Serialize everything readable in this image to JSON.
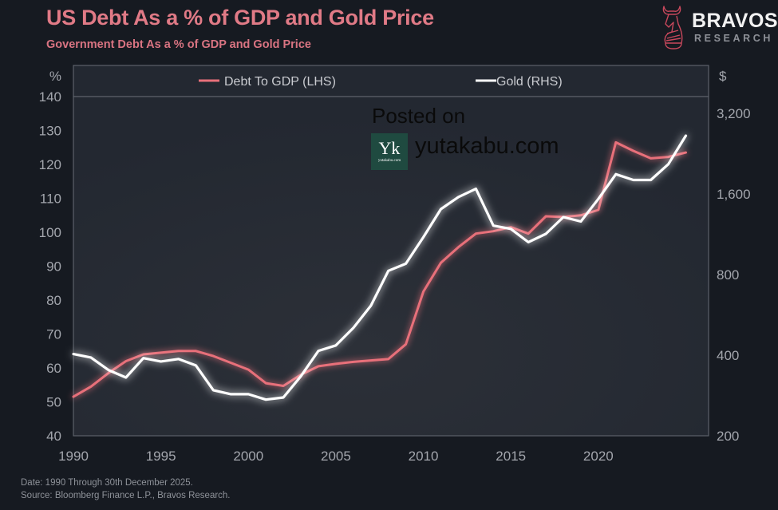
{
  "header": {
    "title": "US Debt As a % of GDP and Gold Price",
    "subtitle": "Government Debt As a % of GDP  and Gold Price"
  },
  "brand": {
    "name": "BRAVOS",
    "sub": "RESEARCH",
    "icon": "knight-bull-icon",
    "color": "#c8485c"
  },
  "watermark": {
    "posted": "Posted on",
    "site": "yutakabu.com",
    "badge_letter": "Yk",
    "badge_text": "yutakabu.com"
  },
  "footer": {
    "date_note": "Date: 1990 Through 30th December 2025.",
    "source": "Source: Bloomberg Finance L.P., Bravos Research."
  },
  "chart_data": {
    "type": "line",
    "title": "US Debt As a % of GDP and Gold Price",
    "subtitle": "Government Debt As a % of GDP  and Gold Price",
    "xlabel": "",
    "x": [
      1990,
      1991,
      1992,
      1993,
      1994,
      1995,
      1996,
      1997,
      1998,
      1999,
      2000,
      2001,
      2002,
      2003,
      2004,
      2005,
      2006,
      2007,
      2008,
      2009,
      2010,
      2011,
      2012,
      2013,
      2014,
      2015,
      2016,
      2017,
      2018,
      2019,
      2020,
      2021,
      2022,
      2023,
      2024,
      2025
    ],
    "xticks": [
      "1990",
      "1995",
      "2000",
      "2005",
      "2010",
      "2015",
      "2020"
    ],
    "xlim": [
      1990,
      2026.3
    ],
    "legend_position": "top-center",
    "grid": false,
    "y_left": {
      "label": "%",
      "lim": [
        40,
        140
      ],
      "ticks": [
        "140",
        "130",
        "120",
        "110",
        "100",
        "90",
        "80",
        "70",
        "60",
        "50",
        "40"
      ],
      "tick_values": [
        140,
        130,
        120,
        110,
        100,
        90,
        80,
        70,
        60,
        50,
        40
      ]
    },
    "y_right": {
      "label": "$",
      "scale": "log",
      "lim": [
        200,
        3500
      ],
      "ticks": [
        "3,200",
        "1,600",
        "800",
        "400",
        "200"
      ],
      "tick_values": [
        3200,
        1600,
        800,
        400,
        200
      ]
    },
    "series": [
      {
        "name": "Debt To GDP (LHS)",
        "axis": "left",
        "color": "#e8707a",
        "values": [
          51.5,
          54.5,
          58.5,
          62,
          64,
          64.5,
          65,
          65,
          63.5,
          61.5,
          59.5,
          55.5,
          54.7,
          58,
          60.5,
          61.2,
          61.8,
          62.2,
          62.6,
          67,
          82.5,
          91,
          95.6,
          99.6,
          100.3,
          101.5,
          99.6,
          104.7,
          104.5,
          105,
          106.6,
          126.5,
          124,
          121.8,
          122.2,
          123.5
        ]
      },
      {
        "name": "Gold (RHS)",
        "axis": "right",
        "color": "#ffffff",
        "values": [
          404,
          392,
          352,
          330,
          390,
          379,
          387,
          366,
          296,
          286,
          286,
          273,
          278,
          334,
          415,
          435,
          506,
          612,
          826,
          878,
          1104,
          1404,
          1558,
          1672,
          1218,
          1185,
          1057,
          1135,
          1311,
          1263,
          1533,
          1896,
          1804,
          1804,
          2067,
          2640
        ]
      }
    ]
  }
}
